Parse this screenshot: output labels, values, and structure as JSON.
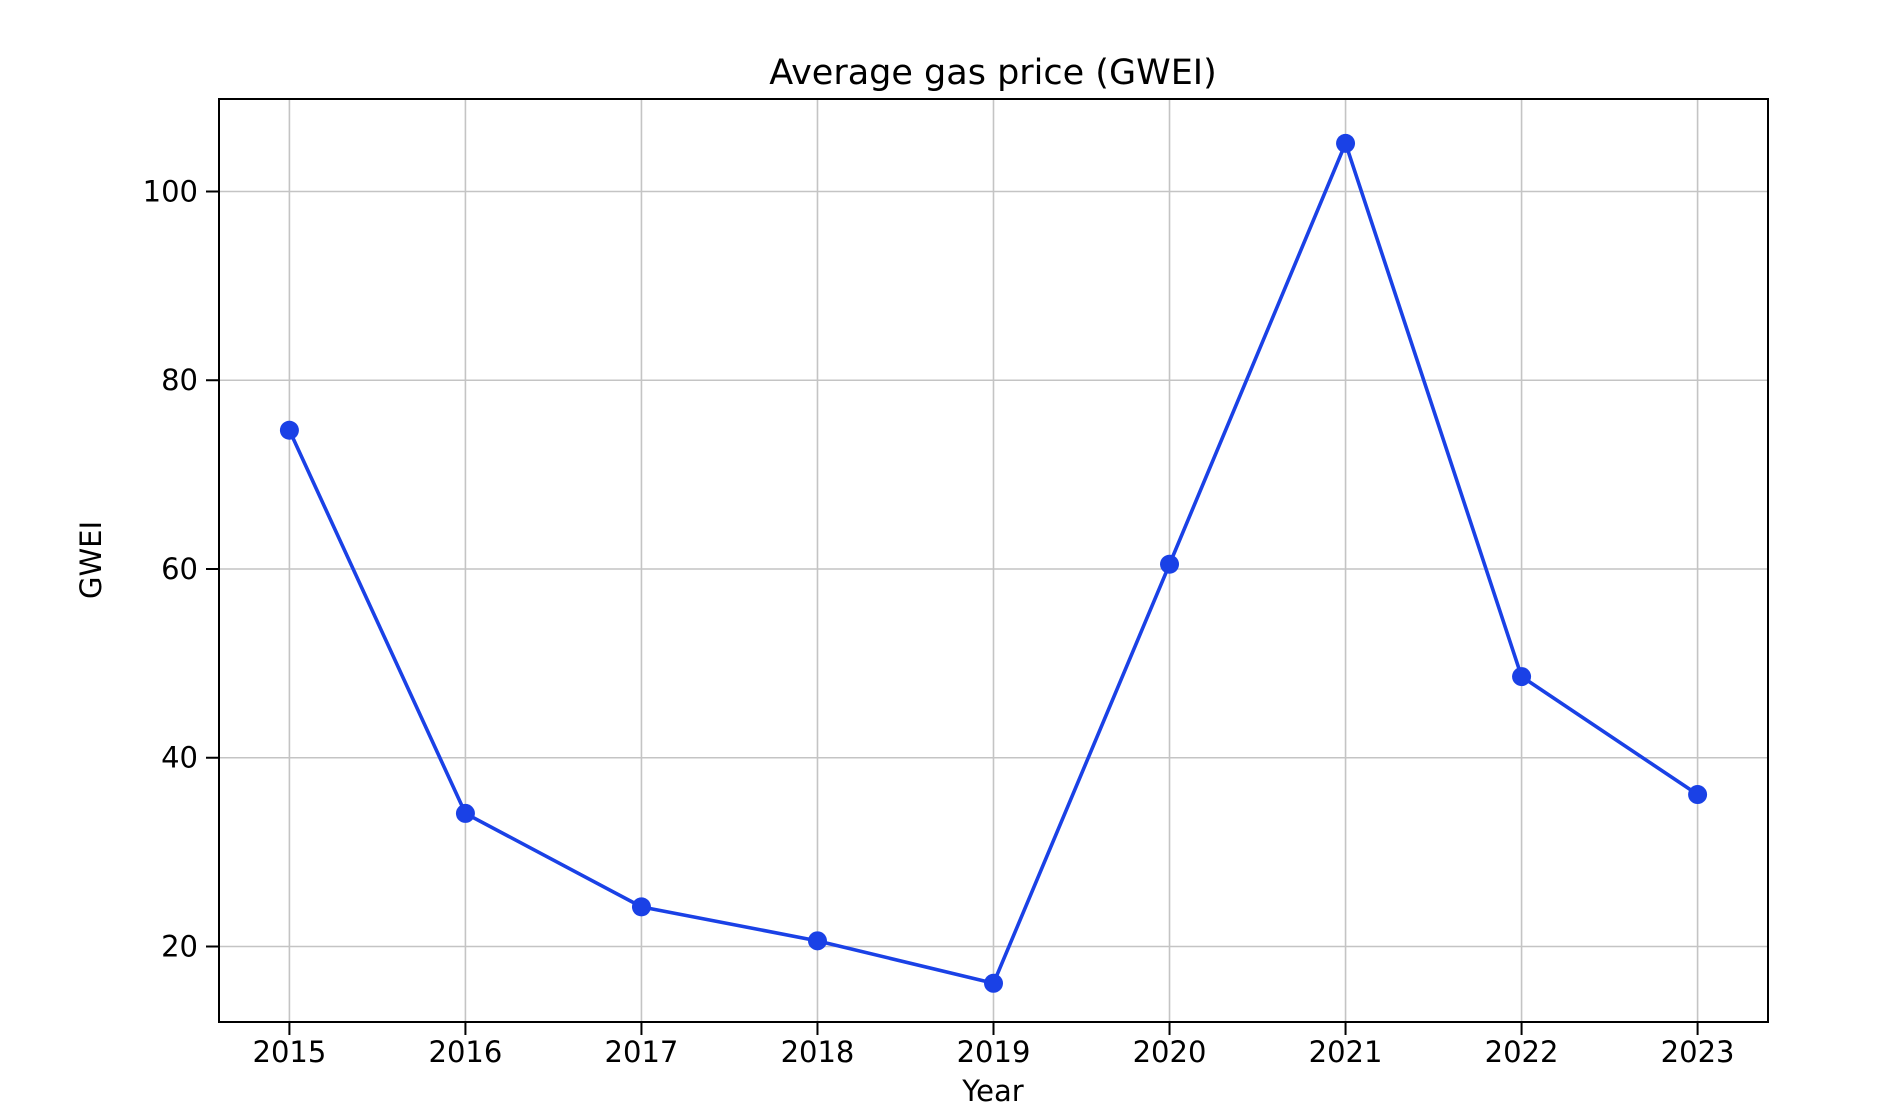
{
  "chart_data": {
    "type": "line",
    "title": "Average gas price (GWEI)",
    "xlabel": "Year",
    "ylabel": "GWEI",
    "categories": [
      2015,
      2016,
      2017,
      2018,
      2019,
      2020,
      2021,
      2022,
      2023
    ],
    "values": [
      74.7,
      34.1,
      24.2,
      20.6,
      16.1,
      60.5,
      105.1,
      48.6,
      36.1
    ],
    "x_tick_labels": [
      "2015",
      "2016",
      "2017",
      "2018",
      "2019",
      "2020",
      "2021",
      "2022",
      "2023"
    ],
    "y_ticks": [
      20,
      40,
      60,
      80,
      100
    ],
    "y_tick_labels": [
      "20",
      "40",
      "60",
      "80",
      "100"
    ],
    "xlim": [
      2014.6,
      2023.4
    ],
    "ylim": [
      12.0,
      109.8
    ],
    "grid": true,
    "legend": "none",
    "marker": "circle",
    "line_width": 3.6,
    "marker_radius": 9.5,
    "colors": {
      "line": "#1A41E6",
      "grid": "#C4C4C4",
      "axis": "#000000",
      "text": "#000000",
      "background": "#FFFFFF"
    }
  }
}
